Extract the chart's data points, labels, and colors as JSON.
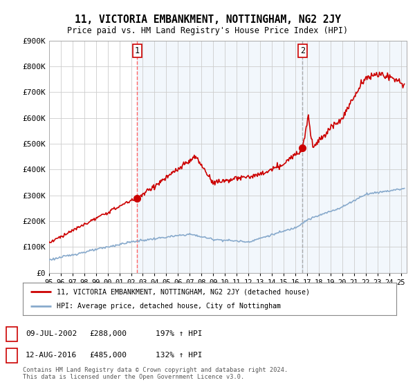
{
  "title": "11, VICTORIA EMBANKMENT, NOTTINGHAM, NG2 2JY",
  "subtitle": "Price paid vs. HM Land Registry's House Price Index (HPI)",
  "ylim": [
    0,
    900000
  ],
  "yticks": [
    0,
    100000,
    200000,
    300000,
    400000,
    500000,
    600000,
    700000,
    800000,
    900000
  ],
  "ytick_labels": [
    "£0",
    "£100K",
    "£200K",
    "£300K",
    "£400K",
    "£500K",
    "£600K",
    "£700K",
    "£800K",
    "£900K"
  ],
  "xlim_start": 1995.0,
  "xlim_end": 2025.5,
  "sale1_x": 2002.52,
  "sale1_y": 288000,
  "sale2_x": 2016.62,
  "sale2_y": 485000,
  "sale_color": "#cc0000",
  "hpi_color": "#88aacc",
  "vline1_color": "#ff6666",
  "vline2_color": "#aaaaaa",
  "shade_color": "#ddeeff",
  "legend_entry1": "11, VICTORIA EMBANKMENT, NOTTINGHAM, NG2 2JY (detached house)",
  "legend_entry2": "HPI: Average price, detached house, City of Nottingham",
  "table_row1": [
    "1",
    "09-JUL-2002",
    "£288,000",
    "197% ↑ HPI"
  ],
  "table_row2": [
    "2",
    "12-AUG-2016",
    "£485,000",
    "132% ↑ HPI"
  ],
  "footer": "Contains HM Land Registry data © Crown copyright and database right 2024.\nThis data is licensed under the Open Government Licence v3.0.",
  "background_color": "#ffffff",
  "grid_color": "#cccccc"
}
